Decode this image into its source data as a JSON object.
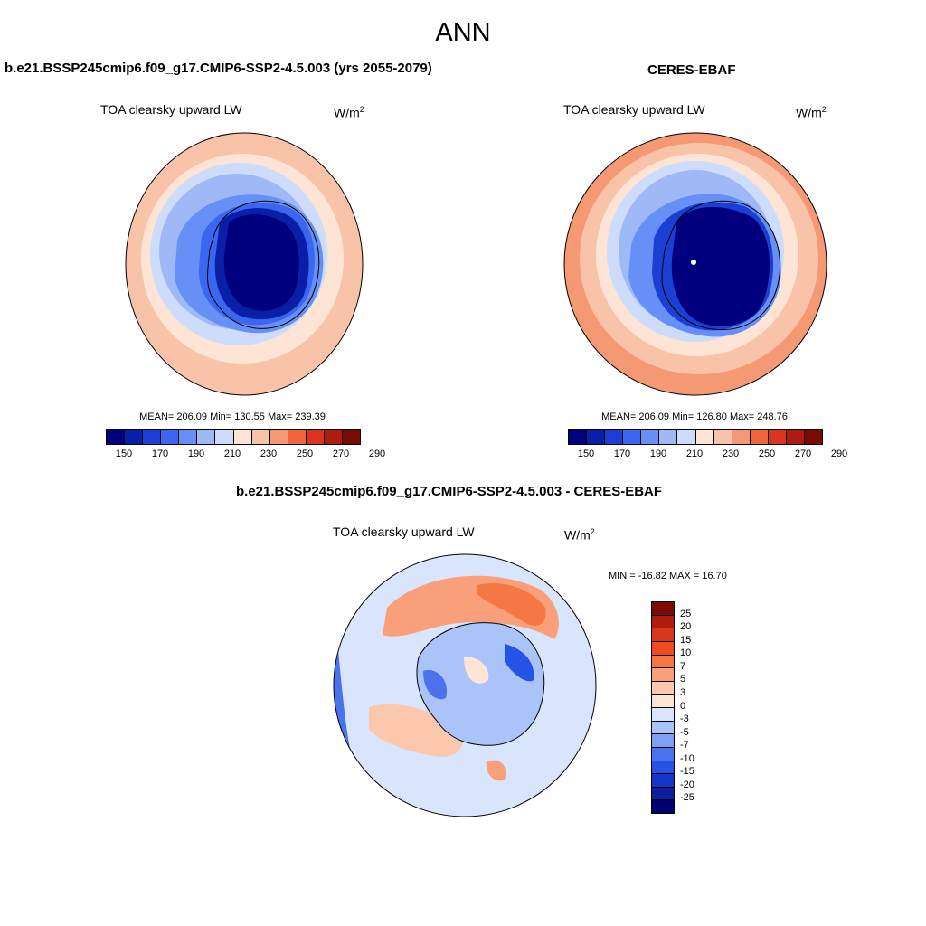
{
  "title": "ANN",
  "panels": {
    "model": {
      "case": "b.e21.BSSP245cmip6.f09_g17.CMIP6-SSP2-4.5.003 (yrs 2055-2079)",
      "field": "TOA clearsky upward LW",
      "unit": "W/m",
      "unit_exp": "2",
      "stats": "MEAN= 206.09  Min= 130.55  Max= 239.39"
    },
    "obs": {
      "case": "CERES-EBAF",
      "field": "TOA clearsky upward LW",
      "unit": "W/m",
      "unit_exp": "2",
      "stats": "MEAN= 206.09  Min= 126.80  Max= 248.76"
    },
    "diff": {
      "case": "b.e21.BSSP245cmip6.f09_g17.CMIP6-SSP2-4.5.003 - CERES-EBAF",
      "field": "TOA clearsky upward LW",
      "unit": "W/m",
      "unit_exp": "2",
      "stats": "MIN = -16.82 MAX =  16.70"
    }
  },
  "colorbar_abs": {
    "ticks": [
      "150",
      "170",
      "190",
      "210",
      "230",
      "250",
      "270",
      "290"
    ],
    "colors": [
      "#00007f",
      "#0a1fa8",
      "#1c3fd3",
      "#3a66f0",
      "#6790f6",
      "#9fb9f7",
      "#cddcfb",
      "#fde4d5",
      "#f9c3a9",
      "#f59874",
      "#f0643e",
      "#d9361c",
      "#b01b10",
      "#7a0a04"
    ]
  },
  "colorbar_diff": {
    "ticks": [
      "25",
      "20",
      "15",
      "10",
      "7",
      "5",
      "3",
      "0",
      "-3",
      "-5",
      "-7",
      "-10",
      "-15",
      "-20",
      "-25"
    ],
    "colors": [
      "#7a0a04",
      "#b01b10",
      "#d9361c",
      "#f04a22",
      "#f57744",
      "#f9a07a",
      "#fbc7ad",
      "#fde4d5",
      "#d8e5fb",
      "#aac3f8",
      "#7e9ff4",
      "#4a72ee",
      "#2752e6",
      "#1236c8",
      "#0a1fa0",
      "#00006e"
    ]
  }
}
